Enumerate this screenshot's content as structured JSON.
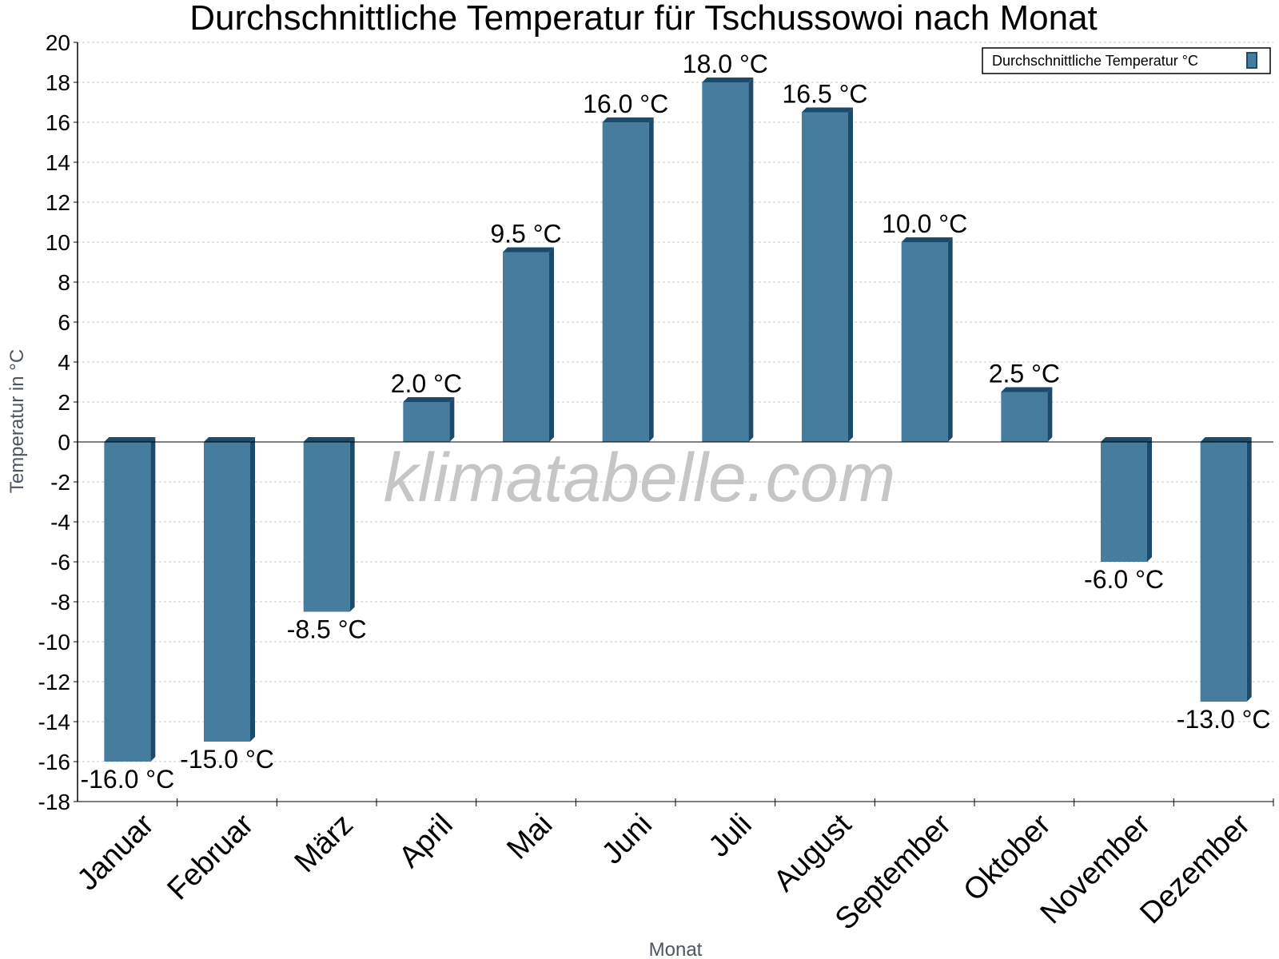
{
  "chart_data": {
    "type": "bar",
    "title": "Durchschnittliche Temperatur für Tschussowoi nach Monat",
    "xlabel": "Monat",
    "ylabel": "Temperatur in °C",
    "ylim": [
      -18,
      20
    ],
    "ytick_step": 2,
    "grid": true,
    "legend_position": "top-right",
    "categories": [
      "Januar",
      "Februar",
      "März",
      "April",
      "Mai",
      "Juni",
      "Juli",
      "August",
      "September",
      "Oktober",
      "November",
      "Dezember"
    ],
    "series": [
      {
        "name": "Durchschnittliche Temperatur °C",
        "values": [
          -16.0,
          -15.0,
          -8.5,
          2.0,
          9.5,
          16.0,
          18.0,
          16.5,
          10.0,
          2.5,
          -6.0,
          -13.0
        ],
        "labels": [
          "-16.0 °C",
          "-15.0 °C",
          "-8.5 °C",
          "2.0 °C",
          "9.5 °C",
          "16.0 °C",
          "18.0 °C",
          "16.5 °C",
          "10.0 °C",
          "2.5 °C",
          "-6.0 °C",
          "-13.0 °C"
        ]
      }
    ],
    "colors": {
      "bar_front": "#467d9e",
      "bar_side": "#1b4a6a",
      "grid": "#c8c8c8",
      "axis": "#000000"
    }
  },
  "watermark": "klimatabelle.com"
}
